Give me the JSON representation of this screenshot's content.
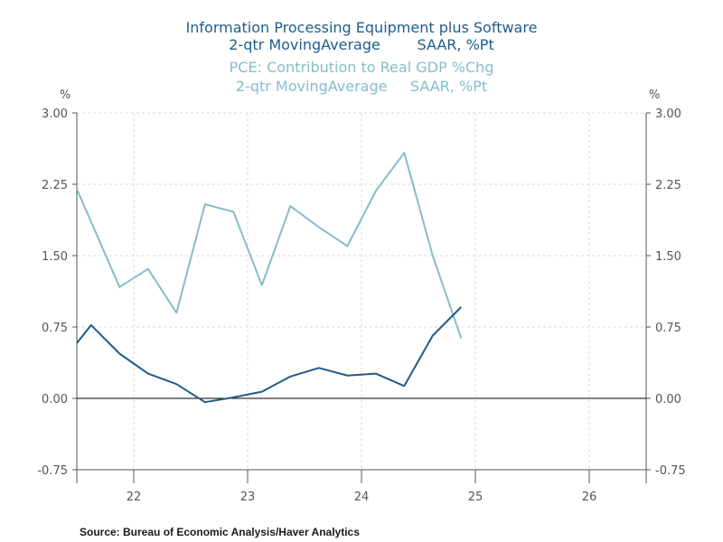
{
  "titles": {
    "series1_line1": "Information Processing Equipment plus Software",
    "series1_line2": "2-qtr MovingAverage        SAAR, %Pt",
    "series2_line1": "PCE: Contribution to Real GDP %Chg",
    "series2_line2": "2-qtr MovingAverage     SAAR, %Pt"
  },
  "axis": {
    "left_unit": "%",
    "right_unit": "%"
  },
  "source": "Source:  Bureau of Economic Analysis/Haver Analytics",
  "colors": {
    "series1": "#1f5c8a",
    "series2": "#86bccc",
    "grid": "#d8d8d8",
    "axis": "#555555"
  },
  "chart_data": {
    "type": "line",
    "ylim": [
      -0.75,
      3.0
    ],
    "yticks": [
      "3.00",
      "2.25",
      "1.50",
      "0.75",
      "0.00",
      "-0.75"
    ],
    "ytick_values": [
      3.0,
      2.25,
      1.5,
      0.75,
      0.0,
      -0.75
    ],
    "xlim": [
      2021.5,
      2026.5
    ],
    "x_boundaries": [
      2022,
      2023,
      2024,
      2025,
      2026
    ],
    "xtick_labels": [
      "22",
      "23",
      "24",
      "25",
      "26"
    ],
    "grid": true,
    "series": [
      {
        "name": "Information Processing Equipment plus Software",
        "x": [
          2021.5,
          2021.625,
          2021.875,
          2022.125,
          2022.375,
          2022.625,
          2022.875,
          2023.125,
          2023.375,
          2023.625,
          2023.875,
          2024.125,
          2024.375,
          2024.625,
          2024.875
        ],
        "values": [
          0.58,
          0.77,
          0.47,
          0.26,
          0.15,
          -0.04,
          0.01,
          0.07,
          0.23,
          0.32,
          0.24,
          0.26,
          0.13,
          0.66,
          0.96
        ]
      },
      {
        "name": "PCE: Contribution to Real GDP %Chg",
        "x": [
          2021.5,
          2021.875,
          2022.125,
          2022.375,
          2022.625,
          2022.875,
          2023.125,
          2023.375,
          2023.625,
          2023.875,
          2024.125,
          2024.375,
          2024.625,
          2024.875
        ],
        "values": [
          2.2,
          1.17,
          1.36,
          0.9,
          2.04,
          1.96,
          1.19,
          2.02,
          1.8,
          1.6,
          2.18,
          2.58,
          1.5,
          0.63
        ]
      }
    ]
  }
}
